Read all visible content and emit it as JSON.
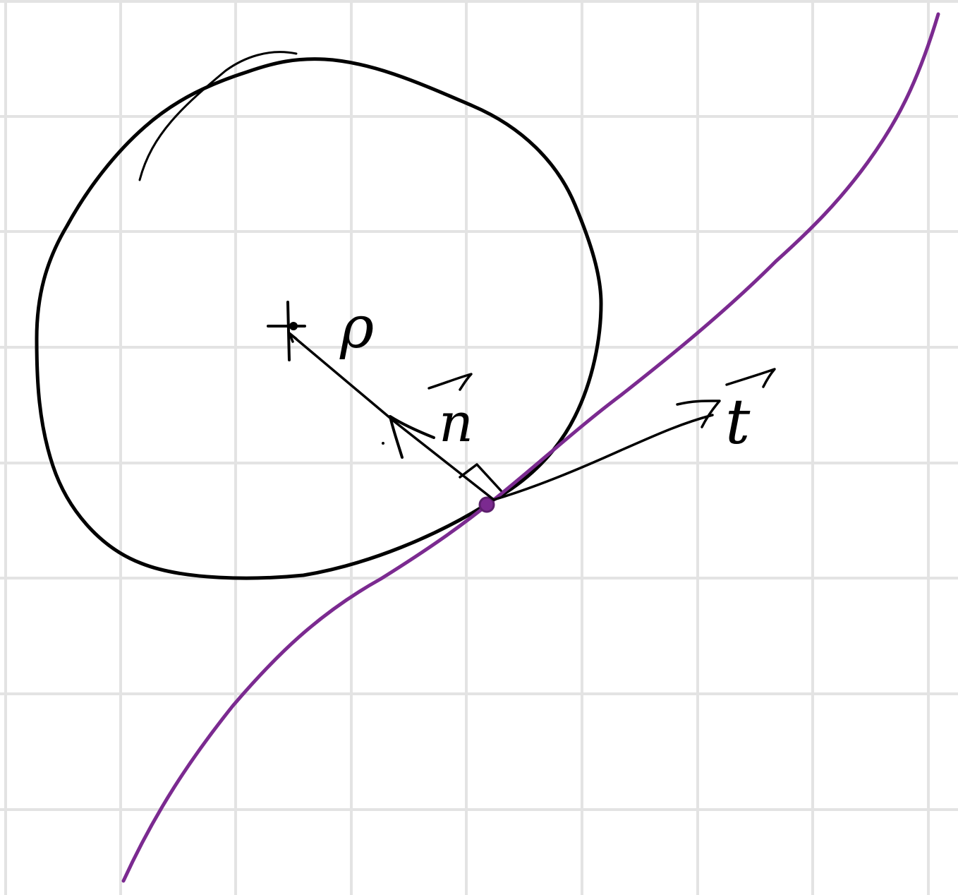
{
  "diagram": {
    "labels": {
      "radius": "ρ",
      "normal": "n",
      "tangent": "t"
    },
    "colors": {
      "background": "#ffffff",
      "grid": "#e3e3e3",
      "ink": "#000000",
      "curve": "#7b2a90"
    }
  }
}
